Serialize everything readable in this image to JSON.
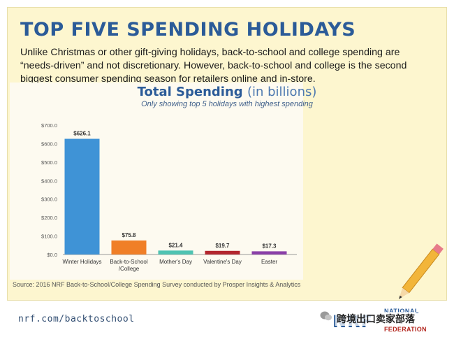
{
  "page": {
    "headline": "TOP FIVE SPENDING HOLIDAYS",
    "intro": "Unlike Christmas or other gift-giving holidays, back-to-school and college spending are “needs-driven” and not discretionary. However, back-to-school and college is the second biggest consumer spending season for retailers online and in-store.",
    "source": "Source: 2016 NRF Back-to-School/College Spending Survey conducted by Prosper Insights & Analytics",
    "footer_url": "nrf.com/backtoschool",
    "logo": {
      "mark": "NRF",
      "top_text": "NATIONAL",
      "bottom_text": "FEDERATION"
    },
    "watermark": "跨境出口卖家部落"
  },
  "chart_data": {
    "type": "bar",
    "title": "Total Spending",
    "title_unit": "(in billions)",
    "subtitle": "Only showing top 5 holidays with highest spending",
    "categories": [
      "Winter Holidays",
      "Back-to-School /College",
      "Mother's Day",
      "Valentine's Day",
      "Easter"
    ],
    "values": [
      626.1,
      75.8,
      21.4,
      19.7,
      17.3
    ],
    "value_labels": [
      "$626.1",
      "$75.8",
      "$21.4",
      "$19.7",
      "$17.3"
    ],
    "colors": [
      "#3f93d6",
      "#f07f27",
      "#4fc3b2",
      "#b3262e",
      "#8a3fa8"
    ],
    "ylim": [
      0,
      700
    ],
    "yticks": [
      0,
      100,
      200,
      300,
      400,
      500,
      600,
      700
    ],
    "ytick_labels": [
      "$0.0",
      "$100.0",
      "$200.0",
      "$300.0",
      "$400.0",
      "$500.0",
      "$600.0",
      "$700.0"
    ],
    "xlabel": "",
    "ylabel": "",
    "grid": false
  }
}
